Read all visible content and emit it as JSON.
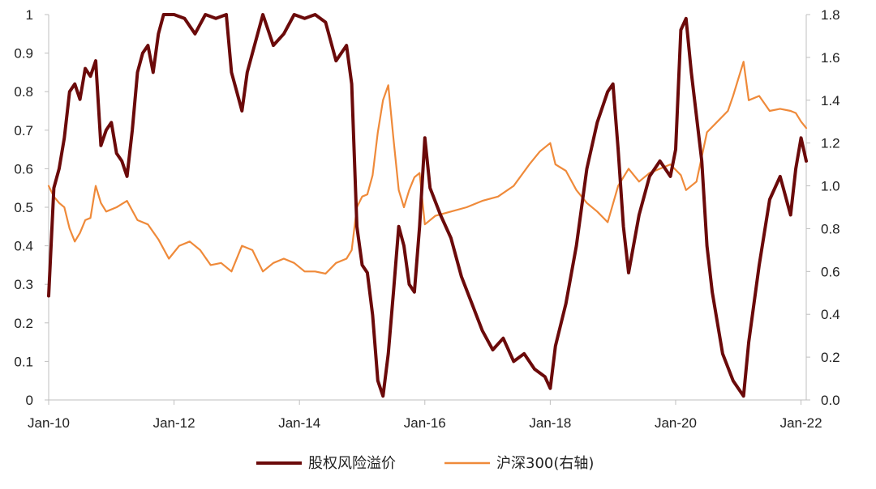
{
  "chart_data": {
    "type": "line",
    "x_ticks": [
      "Jan-10",
      "Jan-12",
      "Jan-14",
      "Jan-16",
      "Jan-18",
      "Jan-20",
      "Jan-22"
    ],
    "x_range": [
      "2010-01",
      "2022-02"
    ],
    "y_left": {
      "ticks": [
        "0",
        "0.1",
        "0.2",
        "0.3",
        "0.4",
        "0.5",
        "0.6",
        "0.7",
        "0.8",
        "0.9",
        "1"
      ],
      "range": [
        0,
        1
      ]
    },
    "y_right": {
      "ticks": [
        "0.0",
        "0.2",
        "0.4",
        "0.6",
        "0.8",
        "1.0",
        "1.2",
        "1.4",
        "1.6",
        "1.8"
      ],
      "range": [
        0,
        1.8
      ]
    },
    "grid": false,
    "legend_position": "bottom-center",
    "series": [
      {
        "name": "股权风险溢价",
        "axis": "left",
        "color": "#6b0a0a",
        "points": [
          [
            "2010-01",
            0.27
          ],
          [
            "2010-02",
            0.55
          ],
          [
            "2010-03",
            0.6
          ],
          [
            "2010-04",
            0.68
          ],
          [
            "2010-05",
            0.8
          ],
          [
            "2010-06",
            0.82
          ],
          [
            "2010-07",
            0.78
          ],
          [
            "2010-08",
            0.86
          ],
          [
            "2010-09",
            0.84
          ],
          [
            "2010-10",
            0.88
          ],
          [
            "2010-11",
            0.66
          ],
          [
            "2010-12",
            0.7
          ],
          [
            "2011-01",
            0.72
          ],
          [
            "2011-02",
            0.64
          ],
          [
            "2011-03",
            0.62
          ],
          [
            "2011-04",
            0.58
          ],
          [
            "2011-05",
            0.7
          ],
          [
            "2011-06",
            0.85
          ],
          [
            "2011-07",
            0.9
          ],
          [
            "2011-08",
            0.92
          ],
          [
            "2011-09",
            0.85
          ],
          [
            "2011-10",
            0.95
          ],
          [
            "2011-11",
            1.0
          ],
          [
            "2012-01",
            1.0
          ],
          [
            "2012-03",
            0.99
          ],
          [
            "2012-05",
            0.95
          ],
          [
            "2012-07",
            1.0
          ],
          [
            "2012-09",
            0.99
          ],
          [
            "2012-11",
            1.0
          ],
          [
            "2012-12",
            0.85
          ],
          [
            "2013-01",
            0.8
          ],
          [
            "2013-02",
            0.75
          ],
          [
            "2013-03",
            0.85
          ],
          [
            "2013-04",
            0.9
          ],
          [
            "2013-06",
            1.0
          ],
          [
            "2013-08",
            0.92
          ],
          [
            "2013-10",
            0.95
          ],
          [
            "2013-12",
            1.0
          ],
          [
            "2014-02",
            0.99
          ],
          [
            "2014-04",
            1.0
          ],
          [
            "2014-06",
            0.98
          ],
          [
            "2014-08",
            0.88
          ],
          [
            "2014-10",
            0.92
          ],
          [
            "2014-11",
            0.82
          ],
          [
            "2014-12",
            0.45
          ],
          [
            "2015-01",
            0.35
          ],
          [
            "2015-02",
            0.33
          ],
          [
            "2015-03",
            0.22
          ],
          [
            "2015-04",
            0.05
          ],
          [
            "2015-05",
            0.01
          ],
          [
            "2015-06",
            0.12
          ],
          [
            "2015-07",
            0.28
          ],
          [
            "2015-08",
            0.45
          ],
          [
            "2015-09",
            0.4
          ],
          [
            "2015-10",
            0.3
          ],
          [
            "2015-11",
            0.28
          ],
          [
            "2015-12",
            0.45
          ],
          [
            "2016-01",
            0.68
          ],
          [
            "2016-02",
            0.55
          ],
          [
            "2016-04",
            0.48
          ],
          [
            "2016-06",
            0.42
          ],
          [
            "2016-08",
            0.32
          ],
          [
            "2016-10",
            0.25
          ],
          [
            "2016-12",
            0.18
          ],
          [
            "2017-02",
            0.13
          ],
          [
            "2017-04",
            0.16
          ],
          [
            "2017-06",
            0.1
          ],
          [
            "2017-08",
            0.12
          ],
          [
            "2017-10",
            0.08
          ],
          [
            "2017-12",
            0.06
          ],
          [
            "2018-01",
            0.03
          ],
          [
            "2018-02",
            0.14
          ],
          [
            "2018-04",
            0.25
          ],
          [
            "2018-06",
            0.4
          ],
          [
            "2018-08",
            0.6
          ],
          [
            "2018-10",
            0.72
          ],
          [
            "2018-12",
            0.8
          ],
          [
            "2019-01",
            0.82
          ],
          [
            "2019-02",
            0.65
          ],
          [
            "2019-03",
            0.45
          ],
          [
            "2019-04",
            0.33
          ],
          [
            "2019-06",
            0.48
          ],
          [
            "2019-08",
            0.58
          ],
          [
            "2019-10",
            0.62
          ],
          [
            "2019-12",
            0.58
          ],
          [
            "2020-01",
            0.65
          ],
          [
            "2020-02",
            0.96
          ],
          [
            "2020-03",
            0.99
          ],
          [
            "2020-04",
            0.85
          ],
          [
            "2020-06",
            0.62
          ],
          [
            "2020-07",
            0.4
          ],
          [
            "2020-08",
            0.28
          ],
          [
            "2020-10",
            0.12
          ],
          [
            "2020-12",
            0.05
          ],
          [
            "2021-02",
            0.01
          ],
          [
            "2021-03",
            0.15
          ],
          [
            "2021-05",
            0.35
          ],
          [
            "2021-07",
            0.52
          ],
          [
            "2021-09",
            0.58
          ],
          [
            "2021-11",
            0.48
          ],
          [
            "2021-12",
            0.6
          ],
          [
            "2022-01",
            0.68
          ],
          [
            "2022-02",
            0.62
          ]
        ]
      },
      {
        "name": "沪深300(右轴)",
        "axis": "right",
        "color": "#ef8a3a",
        "points": [
          [
            "2010-01",
            1.0
          ],
          [
            "2010-02",
            0.95
          ],
          [
            "2010-03",
            0.92
          ],
          [
            "2010-04",
            0.9
          ],
          [
            "2010-05",
            0.8
          ],
          [
            "2010-06",
            0.74
          ],
          [
            "2010-07",
            0.78
          ],
          [
            "2010-08",
            0.84
          ],
          [
            "2010-09",
            0.85
          ],
          [
            "2010-10",
            1.0
          ],
          [
            "2010-11",
            0.92
          ],
          [
            "2010-12",
            0.88
          ],
          [
            "2011-02",
            0.9
          ],
          [
            "2011-04",
            0.93
          ],
          [
            "2011-06",
            0.84
          ],
          [
            "2011-08",
            0.82
          ],
          [
            "2011-10",
            0.75
          ],
          [
            "2011-12",
            0.66
          ],
          [
            "2012-02",
            0.72
          ],
          [
            "2012-04",
            0.74
          ],
          [
            "2012-06",
            0.7
          ],
          [
            "2012-08",
            0.63
          ],
          [
            "2012-10",
            0.64
          ],
          [
            "2012-12",
            0.6
          ],
          [
            "2013-02",
            0.72
          ],
          [
            "2013-04",
            0.7
          ],
          [
            "2013-06",
            0.6
          ],
          [
            "2013-08",
            0.64
          ],
          [
            "2013-10",
            0.66
          ],
          [
            "2013-12",
            0.64
          ],
          [
            "2014-02",
            0.6
          ],
          [
            "2014-04",
            0.6
          ],
          [
            "2014-06",
            0.59
          ],
          [
            "2014-08",
            0.64
          ],
          [
            "2014-10",
            0.66
          ],
          [
            "2014-11",
            0.7
          ],
          [
            "2014-12",
            0.9
          ],
          [
            "2015-01",
            0.95
          ],
          [
            "2015-02",
            0.96
          ],
          [
            "2015-03",
            1.05
          ],
          [
            "2015-04",
            1.25
          ],
          [
            "2015-05",
            1.4
          ],
          [
            "2015-06",
            1.47
          ],
          [
            "2015-07",
            1.22
          ],
          [
            "2015-08",
            0.98
          ],
          [
            "2015-09",
            0.9
          ],
          [
            "2015-10",
            0.98
          ],
          [
            "2015-11",
            1.04
          ],
          [
            "2015-12",
            1.06
          ],
          [
            "2016-01",
            0.82
          ],
          [
            "2016-03",
            0.86
          ],
          [
            "2016-06",
            0.88
          ],
          [
            "2016-09",
            0.9
          ],
          [
            "2016-12",
            0.93
          ],
          [
            "2017-03",
            0.95
          ],
          [
            "2017-06",
            1.0
          ],
          [
            "2017-09",
            1.1
          ],
          [
            "2017-11",
            1.16
          ],
          [
            "2018-01",
            1.2
          ],
          [
            "2018-02",
            1.1
          ],
          [
            "2018-04",
            1.07
          ],
          [
            "2018-06",
            0.98
          ],
          [
            "2018-08",
            0.92
          ],
          [
            "2018-10",
            0.88
          ],
          [
            "2018-12",
            0.83
          ],
          [
            "2019-02",
            1.0
          ],
          [
            "2019-04",
            1.08
          ],
          [
            "2019-06",
            1.02
          ],
          [
            "2019-08",
            1.06
          ],
          [
            "2019-10",
            1.08
          ],
          [
            "2019-12",
            1.1
          ],
          [
            "2020-02",
            1.05
          ],
          [
            "2020-03",
            0.98
          ],
          [
            "2020-05",
            1.02
          ],
          [
            "2020-07",
            1.25
          ],
          [
            "2020-09",
            1.3
          ],
          [
            "2020-11",
            1.35
          ],
          [
            "2020-12",
            1.42
          ],
          [
            "2021-02",
            1.58
          ],
          [
            "2021-03",
            1.4
          ],
          [
            "2021-05",
            1.42
          ],
          [
            "2021-07",
            1.35
          ],
          [
            "2021-09",
            1.36
          ],
          [
            "2021-11",
            1.35
          ],
          [
            "2021-12",
            1.34
          ],
          [
            "2022-01",
            1.3
          ],
          [
            "2022-02",
            1.27
          ]
        ]
      }
    ]
  }
}
